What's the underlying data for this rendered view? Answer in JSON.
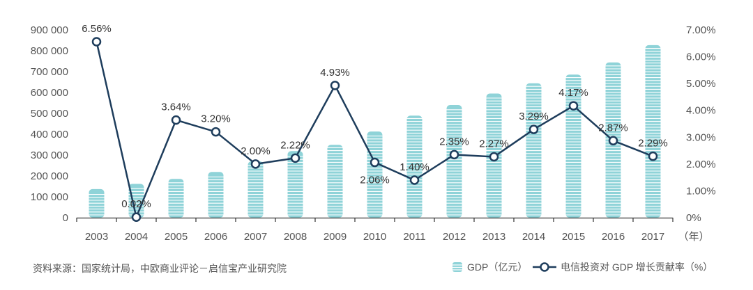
{
  "chart_data": {
    "type": "bar+line",
    "categories": [
      "2003",
      "2004",
      "2005",
      "2006",
      "2007",
      "2008",
      "2009",
      "2010",
      "2011",
      "2012",
      "2013",
      "2014",
      "2015",
      "2016",
      "2017"
    ],
    "x_unit": "（年）",
    "series": [
      {
        "name": "GDP（亿元）",
        "type": "bar",
        "axis": "left",
        "values": [
          137000,
          162000,
          186000,
          219000,
          270000,
          319000,
          349000,
          413000,
          489000,
          540000,
          595000,
          644000,
          686000,
          744000,
          827000
        ]
      },
      {
        "name": "电信投资对 GDP 增长贡献率（%）",
        "type": "line",
        "axis": "right",
        "values": [
          6.56,
          0.02,
          3.64,
          3.2,
          2.0,
          2.22,
          4.93,
          2.06,
          1.4,
          2.35,
          2.27,
          3.29,
          4.17,
          2.87,
          2.29
        ],
        "labels": [
          "6.56%",
          "0.02%",
          "3.64%",
          "3.20%",
          "2.00%",
          "2.22%",
          "4.93%",
          "2.06%",
          "1.40%",
          "2.35%",
          "2.27%",
          "3.29%",
          "4.17%",
          "2.87%",
          "2.29%"
        ]
      }
    ],
    "y_left": {
      "ticks": [
        "0",
        "100 000",
        "200 000",
        "300 000",
        "400 000",
        "500 000",
        "600 000",
        "700 000",
        "800 000",
        "900 000"
      ],
      "ylim": [
        0,
        900000
      ]
    },
    "y_right": {
      "ticks": [
        "0%",
        "1.00%",
        "2.00%",
        "3.00%",
        "4.00%",
        "5.00%",
        "6.00%",
        "7.00%"
      ],
      "ylim": [
        0,
        7
      ]
    },
    "grid": false,
    "colors": {
      "bar": "#8fd3d8",
      "bar_stripe": "#ffffff",
      "line": "#1e3d5c",
      "axis": "#333333"
    }
  },
  "source": "资料来源：国家统计局，中欧商业评论－启信宝产业研究院",
  "legend": {
    "bar_label": "GDP（亿元）",
    "line_label": "电信投资对 GDP 增长贡献率（%）"
  }
}
